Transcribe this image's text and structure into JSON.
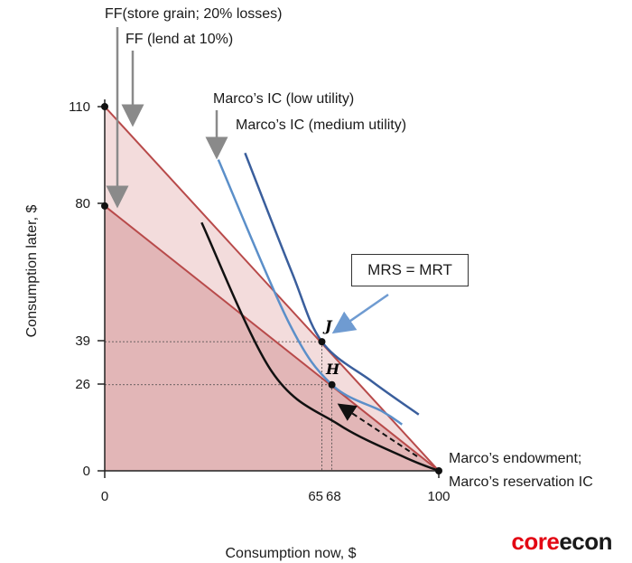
{
  "chart_data": {
    "type": "line",
    "xlabel": "Consumption now, $",
    "ylabel": "Consumption later, $",
    "xlim": [
      0,
      100
    ],
    "ylim": [
      0,
      110
    ],
    "x_ticks": [
      "0",
      "65",
      "68",
      "100"
    ],
    "y_ticks": [
      "0",
      "26",
      "39",
      "80",
      "110"
    ],
    "series": [
      {
        "name": "FF (store grain; 20% losses)",
        "x": [
          0,
          100
        ],
        "y": [
          80,
          0
        ],
        "color": "#b84a4a"
      },
      {
        "name": "FF (lend at 10%)",
        "x": [
          0,
          100
        ],
        "y": [
          110,
          0
        ],
        "color": "#b84a4a"
      },
      {
        "name": "Marco’s IC (low utility)",
        "x": [
          34,
          55,
          68,
          83,
          89
        ],
        "y": [
          94,
          45,
          26,
          18,
          14
        ],
        "color": "#5b8fc9"
      },
      {
        "name": "Marco’s IC (medium utility)",
        "x": [
          42,
          56,
          65,
          80,
          94
        ],
        "y": [
          96,
          60,
          39,
          27,
          17
        ],
        "color": "#3a5e9c"
      },
      {
        "name": "Marco’s reservation IC",
        "x": [
          29,
          50,
          70,
          90,
          100
        ],
        "y": [
          75,
          30,
          14,
          4,
          0
        ],
        "color": "#111111"
      }
    ],
    "points": [
      {
        "label": "J",
        "x": 65,
        "y": 39
      },
      {
        "label": "H",
        "x": 68,
        "y": 26
      },
      {
        "label": "",
        "x": 0,
        "y": 110
      },
      {
        "label": "",
        "x": 0,
        "y": 80
      },
      {
        "label": "",
        "x": 100,
        "y": 0
      }
    ],
    "annotations": {
      "ff_store": "FF(store grain; 20% losses)",
      "ff_lend": "FF (lend at 10%)",
      "ic_low": "Marco’s IC (low utility)",
      "ic_medium": "Marco’s IC (medium utility)",
      "mrs_mrt": "MRS = MRT",
      "endowment": "Marco’s endowment;",
      "reservation": "Marco’s reservation IC"
    },
    "colors": {
      "light_fill": "#f3dcdc",
      "dark_fill": "#e2b6b7",
      "ff_line": "#b84a4a",
      "arrow": "#8a8a8a",
      "callout_arrow": "#6f9bd1"
    }
  },
  "brand": {
    "part1": "core",
    "part2": "econ"
  }
}
